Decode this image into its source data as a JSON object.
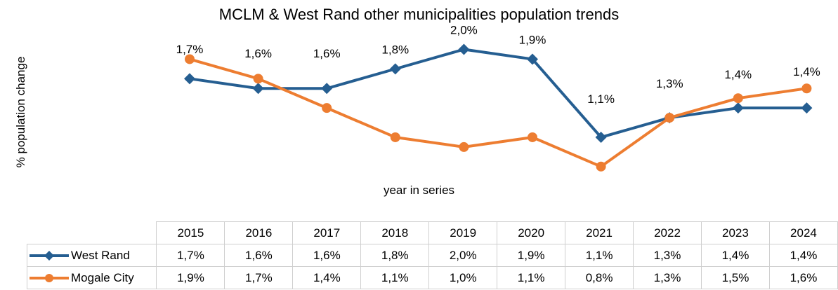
{
  "chart_data": {
    "type": "line",
    "title": "MCLM & West Rand other municipalities population trends",
    "xlabel": "year in series",
    "ylabel": "%  population change",
    "categories": [
      "2015",
      "2016",
      "2017",
      "2018",
      "2019",
      "2020",
      "2021",
      "2022",
      "2023",
      "2024"
    ],
    "series": [
      {
        "name": "West Rand",
        "color": "#255e91",
        "marker": "diamond",
        "values": [
          1.7,
          1.6,
          1.6,
          1.8,
          2.0,
          1.9,
          1.1,
          1.3,
          1.4,
          1.4
        ],
        "labels": [
          "1,7%",
          "1,6%",
          "1,6%",
          "1,8%",
          "2,0%",
          "1,9%",
          "1,1%",
          "1,3%",
          "1,4%",
          "1,4%"
        ]
      },
      {
        "name": "Mogale City",
        "color": "#ed7d31",
        "marker": "circle",
        "values": [
          1.9,
          1.7,
          1.4,
          1.1,
          1.0,
          1.1,
          0.8,
          1.3,
          1.5,
          1.6
        ],
        "labels": [
          "1,9%",
          "1,7%",
          "1,4%",
          "1,1%",
          "1,0%",
          "1,1%",
          "0,8%",
          "1,3%",
          "1,5%",
          "1,6%"
        ]
      }
    ],
    "data_labels_shown_for": "West Rand",
    "legend": "data-table",
    "grid": false
  }
}
